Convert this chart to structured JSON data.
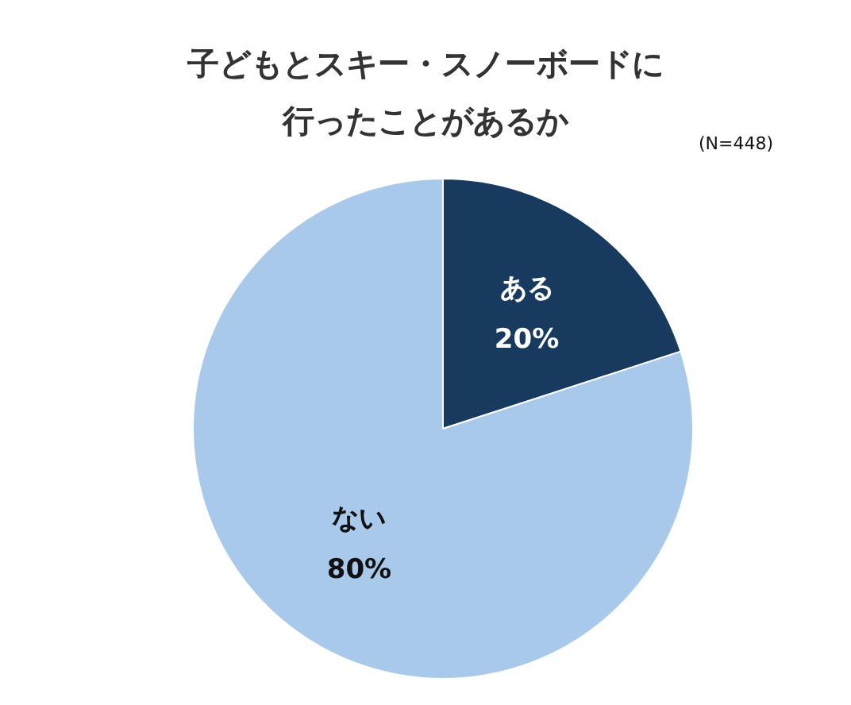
{
  "chart_data": {
    "type": "pie",
    "title": "子どもとスキー・スノーボードに行ったことがあるか",
    "annotations": [
      "(N=448)"
    ],
    "categories": [
      "ある",
      "ない"
    ],
    "values": [
      20,
      80
    ],
    "colors": [
      "#173a5e",
      "#a9c9eb"
    ],
    "value_labels": [
      "20%",
      "80%"
    ],
    "legend": false
  }
}
